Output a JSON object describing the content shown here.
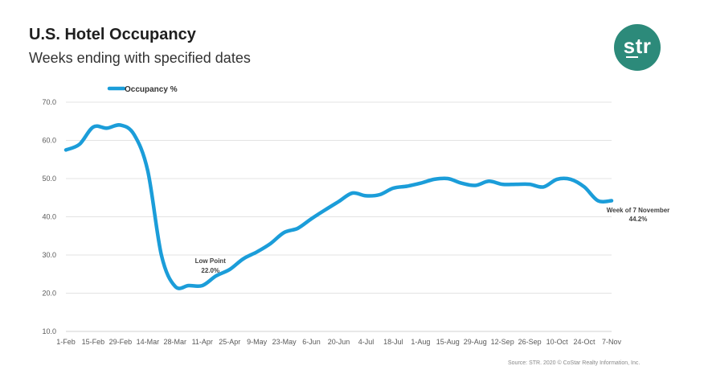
{
  "chart_data": {
    "type": "line",
    "title": "U.S. Hotel Occupancy",
    "subtitle": "Weeks ending with specified dates",
    "xlabel": "",
    "ylabel": "",
    "ylim": [
      10,
      70
    ],
    "y_ticks": [
      "10.0",
      "20.0",
      "30.0",
      "40.0",
      "50.0",
      "60.0",
      "70.0"
    ],
    "x_tick_labels": [
      "1-Feb",
      "15-Feb",
      "29-Feb",
      "14-Mar",
      "28-Mar",
      "11-Apr",
      "25-Apr",
      "9-May",
      "23-May",
      "6-Jun",
      "20-Jun",
      "4-Jul",
      "18-Jul",
      "1-Aug",
      "15-Aug",
      "29-Aug",
      "12-Sep",
      "26-Sep",
      "10-Oct",
      "24-Oct",
      "7-Nov"
    ],
    "grid": true,
    "legend_position": "top-left",
    "series": [
      {
        "name": "Occupancy %",
        "color": "#1b9dd9",
        "x": [
          "1-Feb",
          "8-Feb",
          "15-Feb",
          "22-Feb",
          "29-Feb",
          "7-Mar",
          "14-Mar",
          "21-Mar",
          "28-Mar",
          "4-Apr",
          "11-Apr",
          "18-Apr",
          "25-Apr",
          "2-May",
          "9-May",
          "16-May",
          "23-May",
          "30-May",
          "6-Jun",
          "13-Jun",
          "20-Jun",
          "27-Jun",
          "4-Jul",
          "11-Jul",
          "18-Jul",
          "25-Jul",
          "1-Aug",
          "8-Aug",
          "15-Aug",
          "22-Aug",
          "29-Aug",
          "5-Sep",
          "12-Sep",
          "19-Sep",
          "26-Sep",
          "3-Oct",
          "10-Oct",
          "17-Oct",
          "24-Oct",
          "31-Oct",
          "7-Nov"
        ],
        "values": [
          57.5,
          59.0,
          63.5,
          63.2,
          64.0,
          61.5,
          52.0,
          30.0,
          21.8,
          22.0,
          22.0,
          24.5,
          26.2,
          29.0,
          30.8,
          33.0,
          35.9,
          37.0,
          39.5,
          41.8,
          44.0,
          46.2,
          45.5,
          45.8,
          47.5,
          48.0,
          48.8,
          49.8,
          50.0,
          48.8,
          48.2,
          49.3,
          48.5,
          48.5,
          48.5,
          47.8,
          49.8,
          49.8,
          47.8,
          44.2,
          44.2
        ]
      }
    ],
    "annotations": [
      {
        "label": "Low Point",
        "value": "22.0%",
        "x": "11-Apr"
      },
      {
        "label": "Week of 7 November",
        "value": "44.2%",
        "x": "7-Nov"
      }
    ],
    "source": "Source: STR. 2020 © CoStar Realty Information, Inc."
  },
  "logo": {
    "text": "str",
    "color": "#2c8a7a"
  }
}
